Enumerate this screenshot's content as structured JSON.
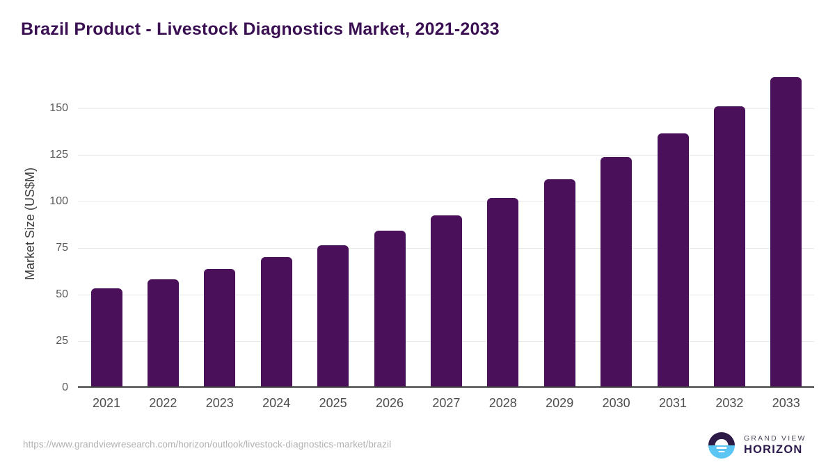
{
  "title": "Brazil Product - Livestock Diagnostics Market, 2021-2033",
  "chart_data": {
    "type": "bar",
    "title": "Brazil Product - Livestock Diagnostics Market, 2021-2033",
    "categories": [
      "2021",
      "2022",
      "2023",
      "2024",
      "2025",
      "2026",
      "2027",
      "2028",
      "2029",
      "2030",
      "2031",
      "2032",
      "2033"
    ],
    "values": [
      53.2,
      58.3,
      63.9,
      70.2,
      76.6,
      84.4,
      92.6,
      101.9,
      112.0,
      123.8,
      136.4,
      151.2,
      166.8
    ],
    "xlabel": "",
    "ylabel": "Market Size (US$M)",
    "ylim": [
      0,
      170
    ],
    "yticks": [
      0,
      25,
      50,
      75,
      100,
      125,
      150
    ],
    "grid": true,
    "legend": false,
    "bar_color": "#4a115a",
    "gridline_color": "#e9e9e9",
    "axis_line_color": "#3f3f3f",
    "tick_label_color": "#595959",
    "x_label_color": "#4d4d4d",
    "title_color": "#3a1053"
  },
  "footer": {
    "source_url": "https://www.grandviewresearch.com/horizon/outlook/livestock-diagnostics-market/brazil",
    "brand": {
      "line1": "GRAND VIEW",
      "line2": "HORIZON",
      "mark_top_color": "#2e1a47",
      "mark_bottom_color": "#5bc6f3"
    }
  }
}
